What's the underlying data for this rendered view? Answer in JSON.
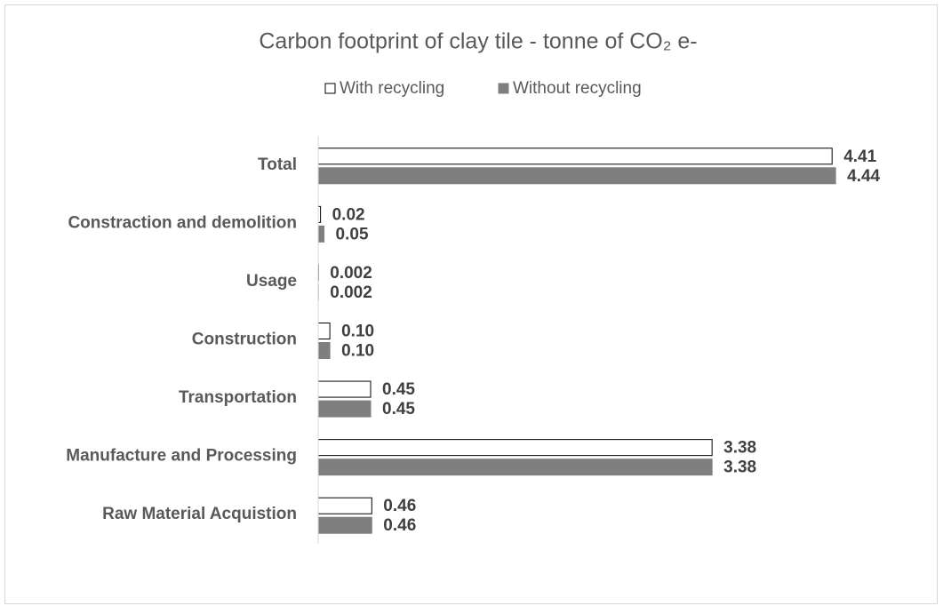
{
  "chart_data": {
    "type": "bar",
    "orientation": "horizontal",
    "title": "Carbon footprint of clay tile - tonne of CO₂ e-",
    "categories": [
      "Total",
      "Constraction and demolition",
      "Usage",
      "Construction",
      "Transportation",
      "Manufacture and Processing",
      "Raw Material Acquistion"
    ],
    "series": [
      {
        "name": "With recycling",
        "color": "#ffffff",
        "stroke": "#000000",
        "values": [
          4.41,
          0.02,
          0.002,
          0.1,
          0.45,
          3.38,
          0.46
        ],
        "value_labels": [
          "4.41",
          "0.02",
          "0.002",
          "0.10",
          "0.45",
          "3.38",
          "0.46"
        ]
      },
      {
        "name": "Without recycling",
        "color": "#7f7f7f",
        "stroke": "#7f7f7f",
        "values": [
          4.44,
          0.05,
          0.002,
          0.1,
          0.45,
          3.38,
          0.46
        ],
        "value_labels": [
          "4.44",
          "0.05",
          "0.002",
          "0.10",
          "0.45",
          "3.38",
          "0.46"
        ]
      }
    ],
    "xlim": [
      0,
      4.5
    ],
    "legend": "top"
  }
}
